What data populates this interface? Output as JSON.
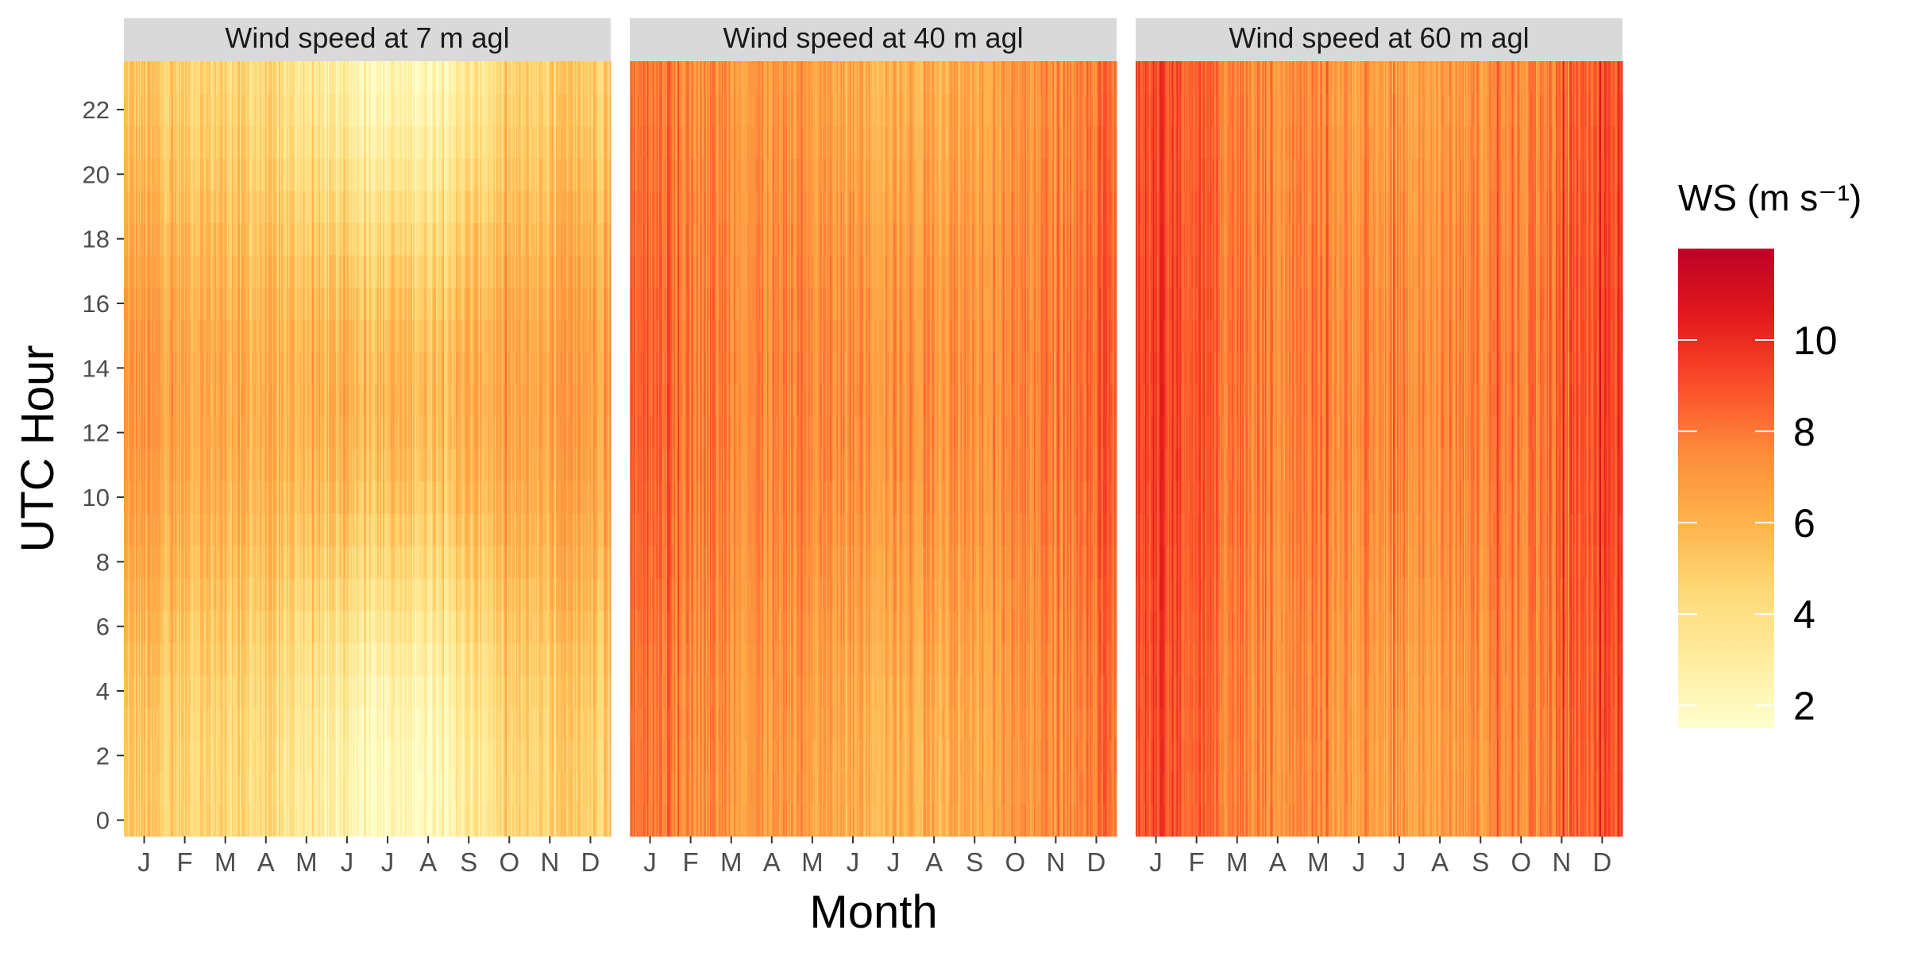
{
  "chart_data": {
    "type": "heatmap",
    "xlabel": "Month",
    "ylabel": "UTC Hour",
    "x_ticks": [
      "J",
      "F",
      "M",
      "A",
      "M",
      "J",
      "J",
      "A",
      "S",
      "O",
      "N",
      "D"
    ],
    "y_ticks": [
      0,
      2,
      4,
      6,
      8,
      10,
      12,
      14,
      16,
      18,
      20,
      22
    ],
    "ylim": [
      0,
      23
    ],
    "legend": {
      "title": "WS (m s⁻¹)",
      "ticks": [
        2,
        4,
        6,
        8,
        10
      ],
      "range": [
        1.5,
        12
      ],
      "placement": "right",
      "colors": [
        "#ffffcc",
        "#ffeda0",
        "#fed976",
        "#feb24c",
        "#fd8d3c",
        "#fc4e2a",
        "#e31a1c",
        "#bd0026"
      ]
    },
    "panels": [
      {
        "title": "Wind speed at 7 m agl",
        "monthly_mean_ws": [
          6.0,
          5.6,
          5.4,
          5.0,
          4.6,
          4.1,
          3.9,
          3.9,
          4.6,
          5.2,
          5.6,
          5.8
        ],
        "night_day_contrast": 1.6
      },
      {
        "title": "Wind speed at 40 m agl",
        "monthly_mean_ws": [
          8.6,
          7.9,
          7.5,
          7.2,
          7.0,
          6.8,
          6.7,
          6.7,
          7.1,
          7.3,
          7.6,
          8.3
        ],
        "night_day_contrast": 0.5
      },
      {
        "title": "Wind speed at 60 m agl",
        "monthly_mean_ws": [
          9.3,
          8.6,
          8.0,
          7.6,
          7.4,
          7.1,
          7.0,
          7.0,
          7.5,
          7.8,
          8.2,
          9.0
        ],
        "night_day_contrast": 0.3
      }
    ]
  }
}
